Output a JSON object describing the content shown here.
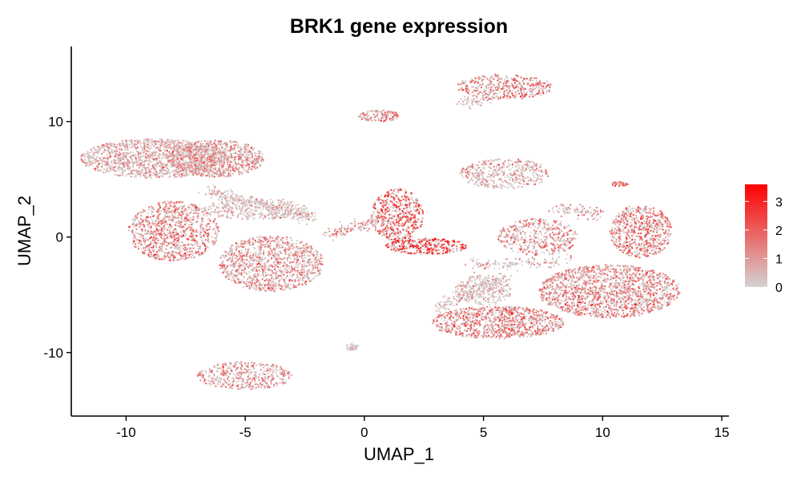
{
  "chart_data": {
    "type": "scatter",
    "title": "BRK1 gene expression",
    "xlabel": "UMAP_1",
    "ylabel": "UMAP_2",
    "xlim": [
      -12.3,
      15.3
    ],
    "ylim": [
      -15.5,
      16.5
    ],
    "x_ticks": [
      -10,
      -5,
      0,
      5,
      10,
      15
    ],
    "y_ticks": [
      -10,
      0,
      10
    ],
    "x_tick_labels": [
      "-10",
      "-5",
      "0",
      "5",
      "10",
      "15"
    ],
    "y_tick_labels": [
      "-10",
      "0",
      "10"
    ],
    "grid": false,
    "legend": {
      "placement": "right",
      "type": "colorbar",
      "min": 0,
      "max": 3.6,
      "ticks": [
        0,
        1,
        2,
        3
      ],
      "tick_labels": [
        "0",
        "1",
        "2",
        "3"
      ],
      "low_color": "#d3d3d3",
      "high_color": "#ff0000"
    },
    "clusters": [
      {
        "cx": -8.8,
        "cy": 6.8,
        "rx": 3.1,
        "ry": 1.7,
        "expr": 0.9,
        "n": 1400
      },
      {
        "cx": -6.2,
        "cy": 6.8,
        "rx": 2.0,
        "ry": 1.6,
        "expr": 1.2,
        "n": 900
      },
      {
        "cx": -8.0,
        "cy": 0.5,
        "rx": 1.9,
        "ry": 2.6,
        "expr": 1.6,
        "n": 1000
      },
      {
        "cx": -3.9,
        "cy": -2.3,
        "rx": 2.2,
        "ry": 2.4,
        "expr": 1.3,
        "n": 1100
      },
      {
        "cx": -4.6,
        "cy": 2.4,
        "rx": 2.2,
        "ry": 0.9,
        "expr": 0.5,
        "n": 350
      },
      {
        "cx": -5.0,
        "cy": -12.0,
        "rx": 2.0,
        "ry": 1.2,
        "expr": 1.1,
        "n": 450
      },
      {
        "cx": 1.4,
        "cy": 1.9,
        "rx": 1.1,
        "ry": 2.3,
        "expr": 2.3,
        "n": 520
      },
      {
        "cx": 2.6,
        "cy": -0.8,
        "rx": 1.7,
        "ry": 0.7,
        "expr": 2.6,
        "n": 330
      },
      {
        "cx": 0.6,
        "cy": 10.5,
        "rx": 0.9,
        "ry": 0.5,
        "expr": 1.4,
        "n": 140
      },
      {
        "cx": 5.9,
        "cy": 13.0,
        "rx": 2.0,
        "ry": 1.1,
        "expr": 1.7,
        "n": 420
      },
      {
        "cx": 5.9,
        "cy": 5.5,
        "rx": 1.9,
        "ry": 1.3,
        "expr": 0.8,
        "n": 420
      },
      {
        "cx": 7.3,
        "cy": 0.0,
        "rx": 1.7,
        "ry": 1.6,
        "expr": 1.3,
        "n": 450
      },
      {
        "cx": 11.6,
        "cy": 0.5,
        "rx": 1.3,
        "ry": 2.3,
        "expr": 1.7,
        "n": 650
      },
      {
        "cx": 10.3,
        "cy": -4.7,
        "rx": 3.0,
        "ry": 2.3,
        "expr": 1.5,
        "n": 1600
      },
      {
        "cx": 5.6,
        "cy": -7.4,
        "rx": 2.8,
        "ry": 1.4,
        "expr": 1.6,
        "n": 1000
      },
      {
        "cx": 5.0,
        "cy": -4.6,
        "rx": 1.2,
        "ry": 1.3,
        "expr": 0.6,
        "n": 280
      },
      {
        "cx": -0.5,
        "cy": -9.5,
        "rx": 0.3,
        "ry": 0.3,
        "expr": 0.2,
        "n": 45
      },
      {
        "cx": 10.7,
        "cy": 4.6,
        "rx": 0.4,
        "ry": 0.2,
        "expr": 1.8,
        "n": 35
      }
    ],
    "bridges": [
      {
        "from": [
          -6.5,
          4.0
        ],
        "to": [
          -2.5,
          1.8
        ],
        "expr": 0.4,
        "n": 260
      },
      {
        "from": [
          -2.8,
          2.0
        ],
        "to": [
          -2.0,
          1.5
        ],
        "expr": 0.8,
        "n": 40
      },
      {
        "from": [
          -1.5,
          0.2
        ],
        "to": [
          0.8,
          1.5
        ],
        "expr": 1.2,
        "n": 120
      },
      {
        "from": [
          3.0,
          -6.2
        ],
        "to": [
          6.0,
          -3.5
        ],
        "expr": 0.6,
        "n": 160
      },
      {
        "from": [
          4.5,
          -2.5
        ],
        "to": [
          8.5,
          -2.0
        ],
        "expr": 0.5,
        "n": 140
      },
      {
        "from": [
          8.0,
          2.5
        ],
        "to": [
          10.0,
          2.0
        ],
        "expr": 1.0,
        "n": 90
      },
      {
        "from": [
          4.0,
          11.5
        ],
        "to": [
          5.5,
          12.2
        ],
        "expr": 0.3,
        "n": 60
      }
    ]
  }
}
